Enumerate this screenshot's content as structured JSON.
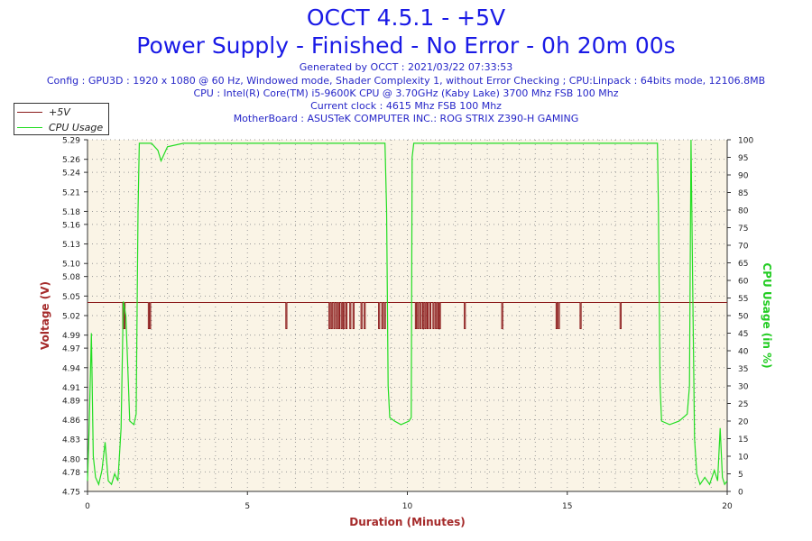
{
  "header": {
    "title_line1": "OCCT 4.5.1 - +5V",
    "title_line2": "Power Supply - Finished - No Error - 0h 20m 00s",
    "generated": "Generated by OCCT : 2021/03/22 07:33:53",
    "config": "Config : GPU3D : 1920 x 1080 @ 60 Hz, Windowed mode, Shader Complexity 1, without Error Checking ; CPU:Linpack : 64bits mode, 12106.8MB",
    "cpu": "CPU : Intel(R) Core(TM) i5-9600K CPU @ 3.70GHz (Kaby Lake) 3700 Mhz FSB 100 Mhz",
    "clock": "Current clock : 4615 Mhz FSB 100 Mhz",
    "motherboard": "MotherBoard : ASUSTeK COMPUTER INC.: ROG STRIX Z390-H GAMING"
  },
  "colors": {
    "voltage": "#8b1a1a",
    "cpu_usage": "#22dd22",
    "plot_bg": "#faf4e6",
    "title": "#1a1ae6",
    "axis_label_left": "#a52a2a",
    "axis_label_right": "#22cc22"
  },
  "chart_data": {
    "type": "line",
    "xlabel": "Duration (Minutes)",
    "ylabel": "Voltage (V)",
    "y2label": "CPU Usage (in %)",
    "xlim": [
      0,
      20
    ],
    "ylim": [
      4.75,
      5.29
    ],
    "y2lim": [
      0,
      100
    ],
    "x_ticks": [
      0,
      5,
      10,
      15,
      20
    ],
    "y_ticks": [
      4.75,
      4.78,
      4.8,
      4.83,
      4.86,
      4.89,
      4.91,
      4.94,
      4.97,
      4.99,
      5.02,
      5.05,
      5.08,
      5.1,
      5.13,
      5.16,
      5.18,
      5.21,
      5.24,
      5.26,
      5.29
    ],
    "y_tick_labels": [
      "4.75",
      "4.78",
      "4.80",
      "4.83",
      "4.86",
      "4.89",
      "4.91",
      "4.94",
      "4.97",
      "4.99",
      "5.02",
      "5.05",
      "5.08",
      "5.10",
      "5.13",
      "5.16",
      "5.18",
      "5.21",
      "5.24",
      "5.26",
      "5.29"
    ],
    "y2_ticks": [
      0,
      5,
      10,
      15,
      20,
      25,
      30,
      35,
      40,
      45,
      50,
      55,
      60,
      65,
      70,
      75,
      80,
      85,
      90,
      95,
      100
    ],
    "grid": true,
    "legend_position": "top-left",
    "series": [
      {
        "name": "+5V",
        "axis": "left",
        "baseline": 5.04,
        "dip_value": 5.0,
        "dips": [
          1.1,
          1.14,
          1.9,
          1.94,
          6.2,
          7.55,
          7.62,
          7.7,
          7.78,
          7.85,
          7.93,
          8.0,
          8.08,
          8.2,
          8.3,
          8.55,
          8.65,
          9.1,
          9.2,
          9.28,
          10.25,
          10.32,
          10.4,
          10.48,
          10.55,
          10.62,
          10.7,
          10.8,
          10.88,
          10.95,
          11.0,
          11.78,
          12.95,
          14.65,
          14.72,
          15.4,
          16.65
        ]
      },
      {
        "name": "CPU Usage",
        "axis": "right",
        "points": [
          [
            0,
            3
          ],
          [
            0.05,
            18
          ],
          [
            0.12,
            45
          ],
          [
            0.18,
            10
          ],
          [
            0.25,
            4
          ],
          [
            0.35,
            2
          ],
          [
            0.45,
            6
          ],
          [
            0.55,
            14
          ],
          [
            0.65,
            3
          ],
          [
            0.75,
            2
          ],
          [
            0.85,
            5
          ],
          [
            0.95,
            3
          ],
          [
            1.05,
            18
          ],
          [
            1.12,
            54
          ],
          [
            1.2,
            50
          ],
          [
            1.28,
            30
          ],
          [
            1.32,
            20
          ],
          [
            1.45,
            19
          ],
          [
            1.52,
            22
          ],
          [
            1.58,
            80
          ],
          [
            1.62,
            99
          ],
          [
            2.0,
            99
          ],
          [
            2.2,
            97
          ],
          [
            2.3,
            94
          ],
          [
            2.5,
            98
          ],
          [
            3.0,
            99
          ],
          [
            4.0,
            99
          ],
          [
            5.0,
            99
          ],
          [
            6.0,
            99
          ],
          [
            7.0,
            99
          ],
          [
            8.0,
            99
          ],
          [
            9.0,
            99
          ],
          [
            9.3,
            99
          ],
          [
            9.35,
            80
          ],
          [
            9.4,
            30
          ],
          [
            9.45,
            21
          ],
          [
            9.6,
            20
          ],
          [
            9.8,
            19
          ],
          [
            10.05,
            20
          ],
          [
            10.12,
            21
          ],
          [
            10.15,
            95
          ],
          [
            10.2,
            99
          ],
          [
            11.0,
            99
          ],
          [
            12.0,
            99
          ],
          [
            13.0,
            99
          ],
          [
            14.0,
            99
          ],
          [
            15.0,
            99
          ],
          [
            16.0,
            99
          ],
          [
            17.0,
            99
          ],
          [
            17.82,
            99
          ],
          [
            17.85,
            80
          ],
          [
            17.9,
            30
          ],
          [
            17.95,
            20
          ],
          [
            18.2,
            19
          ],
          [
            18.5,
            20
          ],
          [
            18.75,
            22
          ],
          [
            18.82,
            30
          ],
          [
            18.87,
            100
          ],
          [
            18.92,
            60
          ],
          [
            18.98,
            15
          ],
          [
            19.05,
            5
          ],
          [
            19.15,
            2
          ],
          [
            19.3,
            4
          ],
          [
            19.45,
            2
          ],
          [
            19.6,
            6
          ],
          [
            19.7,
            3
          ],
          [
            19.78,
            18
          ],
          [
            19.85,
            4
          ],
          [
            19.92,
            2
          ],
          [
            20.0,
            3
          ]
        ]
      }
    ]
  }
}
